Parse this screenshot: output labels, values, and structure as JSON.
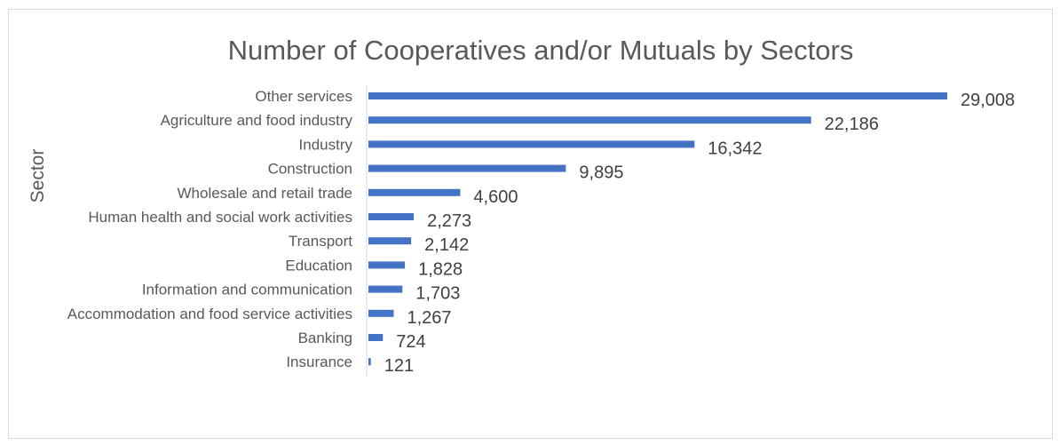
{
  "chart_data": {
    "type": "bar",
    "orientation": "horizontal",
    "title": "Number of Cooperatives and/or Mutuals by Sectors",
    "ylabel": "Sector",
    "xlabel": "",
    "categories": [
      "Other services",
      "Agriculture and food industry",
      "Industry",
      "Construction",
      "Wholesale and retail trade",
      "Human health and social work activities",
      "Transport",
      "Education",
      "Information and communication",
      "Accommodation and food service activities",
      "Banking",
      "Insurance"
    ],
    "values": [
      29008,
      22186,
      16342,
      9895,
      4600,
      2273,
      2142,
      1828,
      1703,
      1267,
      724,
      121
    ],
    "value_labels": [
      "29,008",
      "22,186",
      "16,342",
      "9,895",
      "4,600",
      "2,273",
      "2,142",
      "1,828",
      "1,703",
      "1,267",
      "724",
      "121"
    ],
    "xlim": [
      0,
      29008
    ],
    "bar_color": "#4472c4",
    "grid": false,
    "legend": "none"
  }
}
